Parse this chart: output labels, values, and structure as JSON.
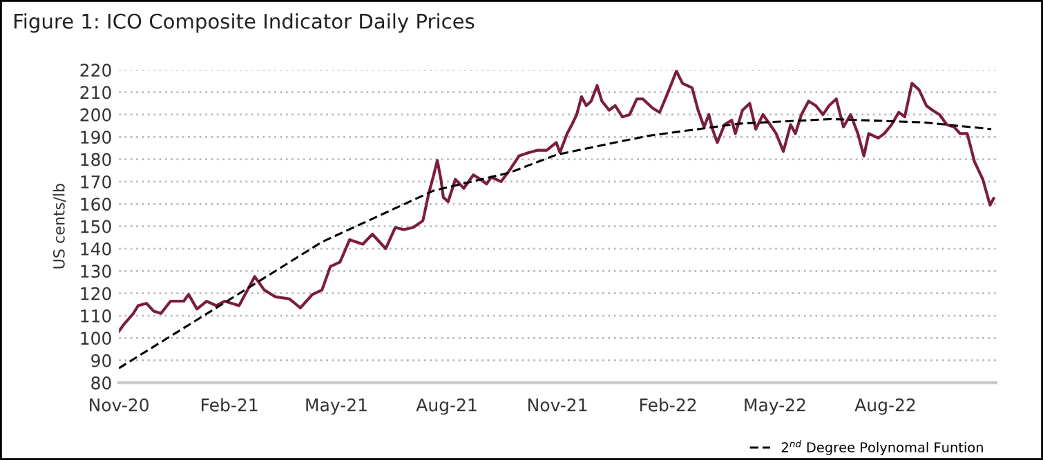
{
  "chart_data": {
    "type": "line",
    "title": "Figure 1: ICO Composite Indicator Daily Prices",
    "ylabel": "US cents/lb",
    "series": [
      {
        "color": "#7b1e3c",
        "x": [
          "2020-11-01",
          "2020-11-05",
          "2020-11-13",
          "2020-11-17",
          "2020-11-24",
          "2020-11-30",
          "2020-12-06",
          "2020-12-14",
          "2020-12-25",
          "2020-12-29",
          "2021-01-05",
          "2021-01-13",
          "2021-01-21",
          "2021-01-28",
          "2021-02-09",
          "2021-02-18",
          "2021-02-22",
          "2021-03-02",
          "2021-03-11",
          "2021-03-23",
          "2021-04-01",
          "2021-04-11",
          "2021-04-19",
          "2021-04-26",
          "2021-05-04",
          "2021-05-12",
          "2021-05-23",
          "2021-05-31",
          "2021-06-11",
          "2021-06-19",
          "2021-06-26",
          "2021-07-04",
          "2021-07-12",
          "2021-07-17",
          "2021-07-21",
          "2021-07-24",
          "2021-07-27",
          "2021-07-29",
          "2021-08-02",
          "2021-08-08",
          "2021-08-15",
          "2021-08-23",
          "2021-08-29",
          "2021-09-03",
          "2021-09-07",
          "2021-09-15",
          "2021-09-22",
          "2021-09-30",
          "2021-10-08",
          "2021-10-15",
          "2021-10-23",
          "2021-10-31",
          "2021-11-03",
          "2021-11-09",
          "2021-11-13",
          "2021-11-17",
          "2021-11-21",
          "2021-11-25",
          "2021-11-29",
          "2021-12-04",
          "2021-12-08",
          "2021-12-14",
          "2021-12-19",
          "2021-12-25",
          "2021-12-31",
          "2022-01-06",
          "2022-01-11",
          "2022-01-19",
          "2022-01-25",
          "2022-02-01",
          "2022-02-08",
          "2022-02-13",
          "2022-02-21",
          "2022-02-26",
          "2022-03-03",
          "2022-03-07",
          "2022-03-10",
          "2022-03-14",
          "2022-03-20",
          "2022-03-26",
          "2022-03-29",
          "2022-04-04",
          "2022-04-10",
          "2022-04-15",
          "2022-04-21",
          "2022-04-27",
          "2022-05-02",
          "2022-05-08",
          "2022-05-14",
          "2022-05-18",
          "2022-05-23",
          "2022-05-29",
          "2022-06-04",
          "2022-06-10",
          "2022-06-15",
          "2022-06-21",
          "2022-06-27",
          "2022-07-03",
          "2022-07-09",
          "2022-07-14",
          "2022-07-18",
          "2022-07-26",
          "2022-07-31",
          "2022-08-06",
          "2022-08-12",
          "2022-08-17",
          "2022-08-23",
          "2022-08-29",
          "2022-09-04",
          "2022-09-09",
          "2022-09-15",
          "2022-09-21",
          "2022-09-27",
          "2022-10-02",
          "2022-10-08",
          "2022-10-14",
          "2022-10-21",
          "2022-10-27",
          "2022-10-30"
        ],
        "values": [
          103,
          106,
          111,
          114.5,
          115.5,
          112,
          111,
          116.5,
          116.5,
          119.5,
          113,
          116.5,
          114.5,
          116.5,
          114.5,
          123.5,
          127.5,
          121.5,
          118.5,
          117.5,
          113.5,
          119.5,
          121.5,
          132,
          134,
          144,
          142,
          146.5,
          140,
          149.5,
          148.5,
          149.5,
          152.5,
          165,
          173,
          179.5,
          171,
          163,
          161,
          171,
          167,
          173,
          171,
          169,
          172,
          170,
          175,
          181.5,
          183,
          184,
          184,
          187.5,
          183,
          191.5,
          195.5,
          200,
          208,
          204,
          206,
          213,
          206,
          202,
          204,
          199,
          200,
          207,
          207,
          203,
          201,
          210,
          219.5,
          214,
          212,
          202,
          194.5,
          200,
          193.5,
          187.5,
          195.5,
          197.5,
          191.5,
          202,
          205,
          193.5,
          200,
          195.5,
          191.5,
          183.5,
          195.5,
          191.5,
          200,
          206,
          204,
          200,
          204,
          207,
          194.5,
          200,
          191.5,
          181.5,
          191.5,
          189.5,
          191.5,
          195.5,
          201,
          199,
          214,
          211,
          204,
          202,
          200,
          195.5,
          194.5,
          191.5,
          191.5,
          179,
          171,
          159.5,
          162.5
        ]
      },
      {
        "name": "2$^{nd}$ Degree Polynomal Funtion",
        "color": "#000000",
        "line_style": "dashed",
        "x": [
          "2020-11-01",
          "2021-01-24",
          "2021-04-19",
          "2021-07-21",
          "2021-09-22",
          "2021-10-31",
          "2022-01-15",
          "2022-04-02",
          "2022-06-17",
          "2022-09-02",
          "2022-10-28"
        ],
        "values": [
          86.5,
          114.5,
          143,
          166,
          174,
          182,
          190.5,
          196,
          198,
          196.5,
          193.5
        ]
      }
    ],
    "xlim": [
      "2020-11-01",
      "2022-11-01"
    ],
    "xticks": [
      {
        "value": "2020-11-01",
        "label": "Nov-20"
      },
      {
        "value": "2021-02-01",
        "label": "Feb-21"
      },
      {
        "value": "2021-05-01",
        "label": "May-21"
      },
      {
        "value": "2021-08-01",
        "label": "Aug-21"
      },
      {
        "value": "2021-11-01",
        "label": "Nov-21"
      },
      {
        "value": "2022-02-01",
        "label": "Feb-22"
      },
      {
        "value": "2022-05-01",
        "label": "May-22"
      },
      {
        "value": "2022-08-01",
        "label": "Aug-22"
      }
    ],
    "ylim": [
      80,
      220
    ],
    "yticks": [
      80,
      90,
      100,
      110,
      120,
      130,
      140,
      150,
      160,
      170,
      180,
      190,
      200,
      210,
      220
    ],
    "grid": "y",
    "legend": "bottom right",
    "marker": "none"
  }
}
